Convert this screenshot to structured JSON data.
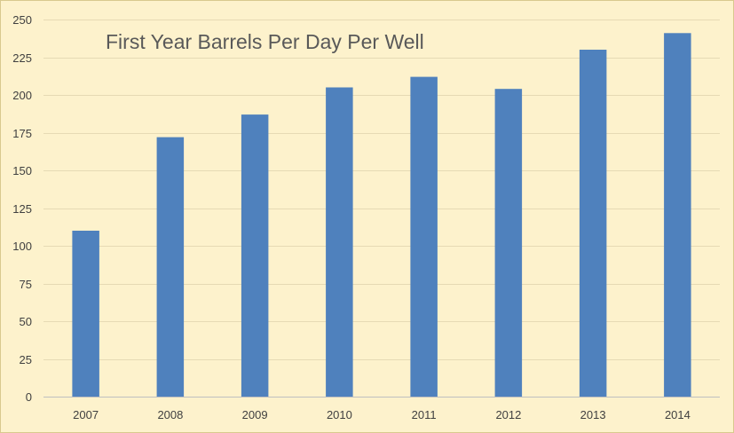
{
  "chart_data": {
    "type": "bar",
    "title": "First Year Barrels Per Day Per Well",
    "xlabel": "",
    "ylabel": "",
    "categories": [
      "2007",
      "2008",
      "2009",
      "2010",
      "2011",
      "2012",
      "2013",
      "2014"
    ],
    "values": [
      110,
      172,
      187,
      205,
      212,
      204,
      230,
      241
    ],
    "ylim": [
      0,
      250
    ],
    "yticks": [
      0,
      25,
      50,
      75,
      100,
      125,
      150,
      175,
      200,
      225,
      250
    ],
    "grid": true,
    "legend": "none",
    "colors": {
      "bar": "#4f81bd",
      "background": "#fdf2cc",
      "gridline": "#e6dab4",
      "axis": "#bfbfbf",
      "text": "#404040",
      "title": "#595959"
    }
  }
}
